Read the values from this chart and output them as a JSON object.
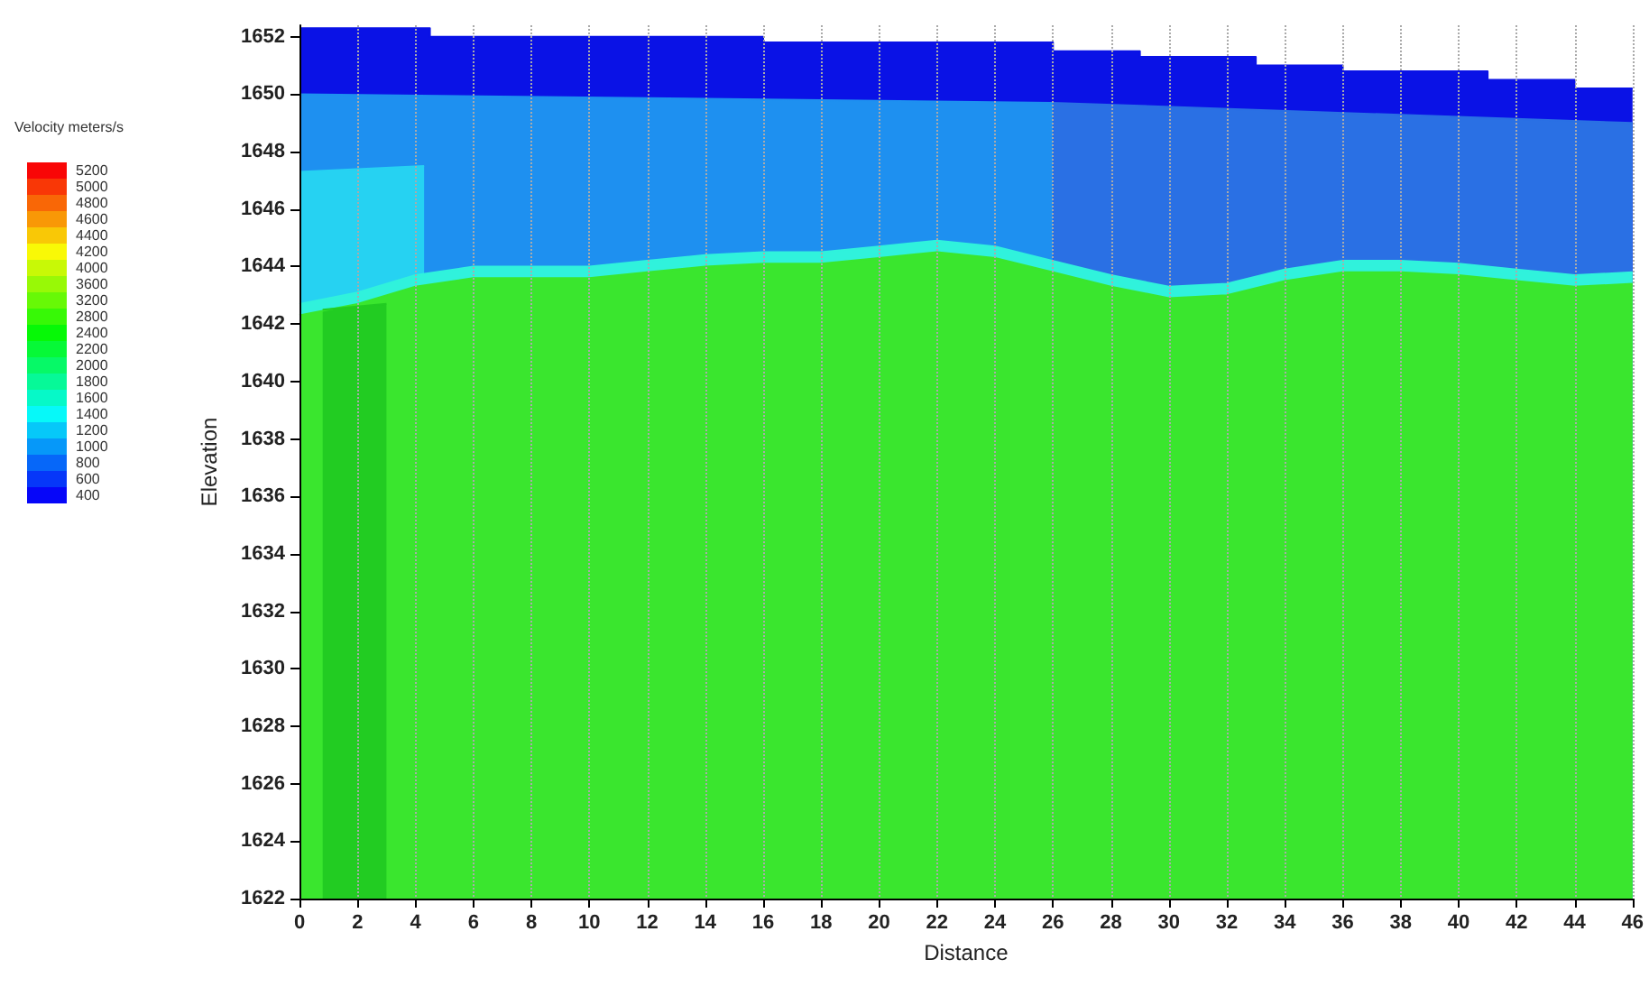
{
  "chart_data": {
    "type": "area",
    "xlabel": "Distance",
    "ylabel": "Elevation",
    "annotations": [
      "Velocity meters/s",
      "5200",
      "5000",
      "4800",
      "4600",
      "4400",
      "4200",
      "4000",
      "3600",
      "3200",
      "2800",
      "2400",
      "2200",
      "2000",
      "1800",
      "1600",
      "1400",
      "1200",
      "1000",
      "800",
      "600",
      "400"
    ],
    "xlim": [
      0,
      46
    ],
    "xticks": [
      0,
      2,
      4,
      6,
      8,
      10,
      12,
      14,
      16,
      18,
      20,
      22,
      24,
      26,
      28,
      30,
      32,
      34,
      36,
      38,
      40,
      42,
      44,
      46
    ],
    "ylim": [
      1622,
      1652.4
    ],
    "yticks": [
      1622,
      1624,
      1626,
      1628,
      1630,
      1632,
      1634,
      1636,
      1638,
      1640,
      1642,
      1644,
      1646,
      1648,
      1650,
      1652
    ],
    "grid": "x",
    "series": [
      {
        "color": "#0a12e6",
        "x": [
          0,
          4.5,
          4.5,
          16,
          16,
          26,
          26,
          29,
          29,
          33,
          33,
          36,
          36,
          41,
          41,
          44,
          44,
          46
        ],
        "values": [
          1652.3,
          1652.3,
          1652,
          1652,
          1651.8,
          1651.8,
          1651.5,
          1651.5,
          1651.3,
          1651.3,
          1651,
          1651,
          1650.8,
          1650.8,
          1650.5,
          1650.5,
          1650.2,
          1650.2
        ]
      },
      {
        "color": "#1e90f0",
        "x": [
          0,
          26
        ],
        "values": [
          1650,
          1649.7
        ]
      },
      {
        "color": "#2a70e4",
        "x": [
          26,
          46
        ],
        "values": [
          1649.7,
          1649
        ]
      },
      {
        "color": "#26d2f2",
        "x": [
          0,
          4.3
        ],
        "values": [
          1647.3,
          1647.5
        ]
      },
      {
        "color": "#30f2dc",
        "x": [
          0,
          2,
          4,
          6,
          8,
          10,
          12,
          14,
          16,
          18,
          20,
          22,
          24,
          26,
          28,
          30,
          32,
          34,
          36,
          38,
          40,
          42,
          44,
          46
        ],
        "values": [
          1642.7,
          1643.1,
          1643.7,
          1644,
          1644,
          1644,
          1644.2,
          1644.4,
          1644.5,
          1644.5,
          1644.7,
          1644.9,
          1644.7,
          1644.2,
          1643.7,
          1643.3,
          1643.4,
          1643.9,
          1644.2,
          1644.2,
          1644.1,
          1643.9,
          1643.7,
          1643.8
        ]
      },
      {
        "color": "#3ae62e",
        "x": [
          0,
          2,
          4,
          6,
          8,
          10,
          12,
          14,
          16,
          18,
          20,
          22,
          24,
          26,
          28,
          30,
          32,
          34,
          36,
          38,
          40,
          42,
          44,
          46
        ],
        "values": [
          1642.3,
          1642.7,
          1643.3,
          1643.6,
          1643.6,
          1643.6,
          1643.8,
          1644,
          1644.1,
          1644.1,
          1644.3,
          1644.5,
          1644.3,
          1643.8,
          1643.3,
          1642.9,
          1643,
          1643.5,
          1643.8,
          1643.8,
          1643.7,
          1643.5,
          1643.3,
          1643.4
        ]
      },
      {
        "color": "#22cc22",
        "x": [
          0.8,
          3
        ],
        "values": [
          1642.5,
          1642.7
        ]
      }
    ]
  }
}
